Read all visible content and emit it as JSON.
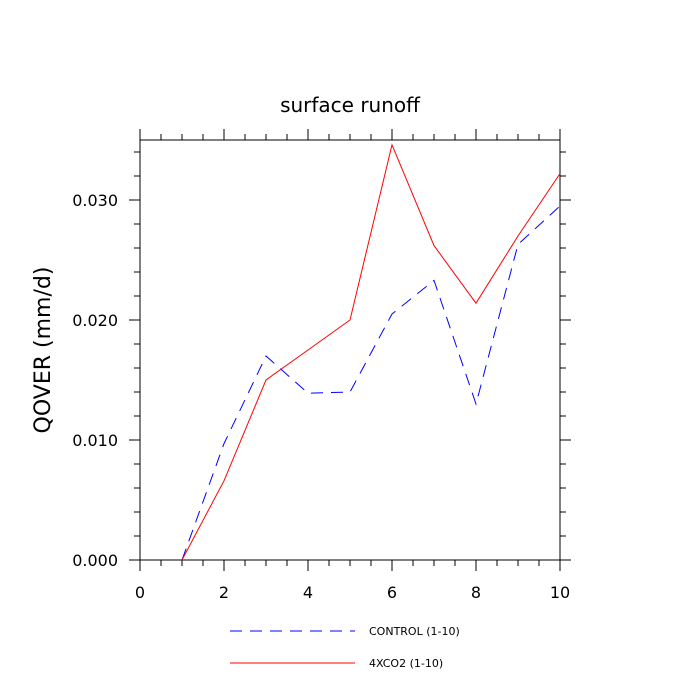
{
  "chart_data": {
    "type": "line",
    "title": "surface runoff",
    "xlabel": "",
    "ylabel": "QOVER  (mm/d)",
    "xlim": [
      0,
      10
    ],
    "ylim": [
      0,
      0.035
    ],
    "x_ticks": [
      0,
      2,
      4,
      6,
      8,
      10
    ],
    "x_tick_labels": [
      "0",
      "2",
      "4",
      "6",
      "8",
      "10"
    ],
    "y_ticks": [
      0,
      0.01,
      0.02,
      0.03
    ],
    "y_tick_labels": [
      "0.000",
      "0.010",
      "0.020",
      "0.030"
    ],
    "grid": false,
    "legend_position": "bottom-center",
    "series": [
      {
        "name": "CONTROL (1-10)",
        "color": "#0000ff",
        "dash": "dashed",
        "x": [
          1,
          2,
          3,
          4,
          5,
          6,
          7,
          8,
          9,
          10
        ],
        "y": [
          0.0,
          0.0097,
          0.017,
          0.0139,
          0.014,
          0.0205,
          0.0233,
          0.013,
          0.0263,
          0.0295
        ]
      },
      {
        "name": "4XCO2 (1-10)",
        "color": "#ff0000",
        "dash": "solid",
        "x": [
          1,
          2,
          3,
          4,
          5,
          6,
          7,
          8,
          9,
          10
        ],
        "y": [
          0.0,
          0.0066,
          0.015,
          0.0175,
          0.02,
          0.0346,
          0.0262,
          0.0214,
          0.027,
          0.0322
        ]
      }
    ]
  }
}
